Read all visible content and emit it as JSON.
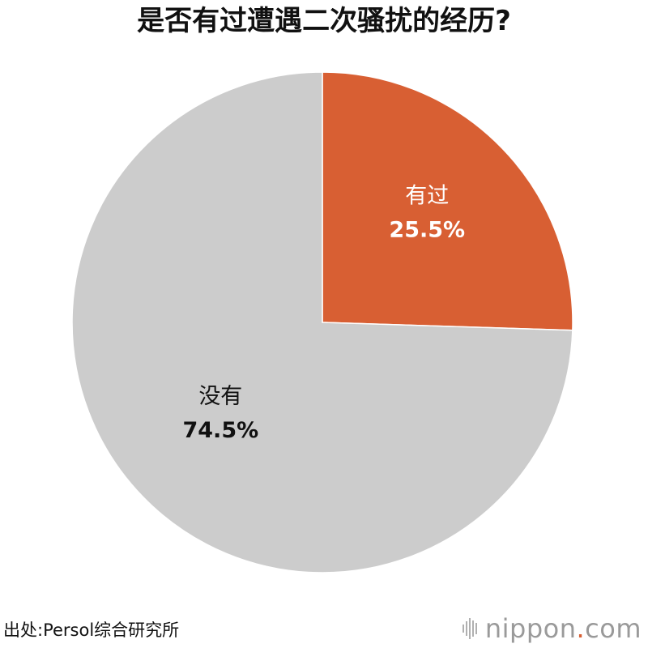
{
  "title": "是否有过遭遇二次骚扰的经历?",
  "source": "出处:Persol综合研究所",
  "brand": {
    "name": "nippon",
    "dot": ".",
    "suffix": "com",
    "logo_icon": "sound-bars-icon"
  },
  "colors": {
    "yes": "#d85f33",
    "no": "#cccccc",
    "border": "#ffffff"
  },
  "chart_data": {
    "type": "pie",
    "title": "是否有过遭遇二次骚扰的经历?",
    "start": "12 o'clock",
    "direction": "clockwise",
    "slices": [
      {
        "label": "有过",
        "value": 25.5,
        "display": "25.5%",
        "color": "#d85f33",
        "label_color": "#ffffff"
      },
      {
        "label": "没有",
        "value": 74.5,
        "display": "74.5%",
        "color": "#cccccc",
        "label_color": "#111111"
      }
    ]
  }
}
